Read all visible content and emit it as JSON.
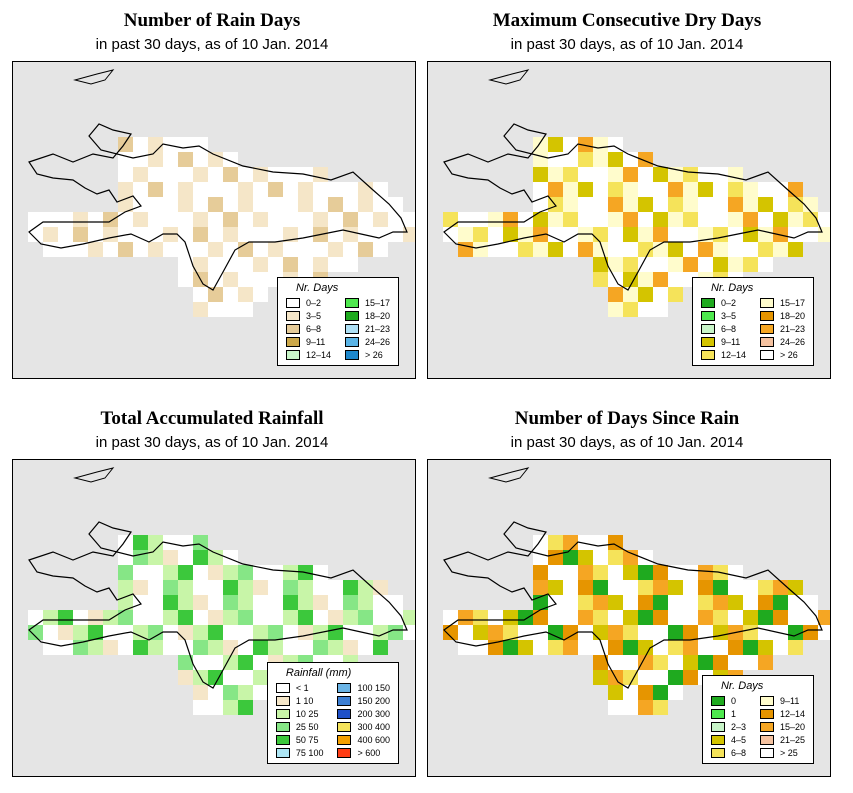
{
  "panels": [
    {
      "title": "Number of Rain Days",
      "subtitle": "in past 30 days, as of  10 Jan. 2014",
      "legend_title": "Nr. Days",
      "legend": [
        {
          "label": "0–2",
          "color": "#ffffff"
        },
        {
          "label": "3–5",
          "color": "#f5e6c8"
        },
        {
          "label": "6–8",
          "color": "#e6cc99"
        },
        {
          "label": "9–11",
          "color": "#cca84a"
        },
        {
          "label": "12–14",
          "color": "#c8f5c8"
        },
        {
          "label": "15–17",
          "color": "#4ee84e"
        },
        {
          "label": "18–20",
          "color": "#1faa1f"
        },
        {
          "label": "21–23",
          "color": "#aee0f5"
        },
        {
          "label": "24–26",
          "color": "#5ab4e6"
        },
        {
          "label": "> 26",
          "color": "#1e88cc"
        }
      ]
    },
    {
      "title": "Maximum Consecutive Dry Days",
      "subtitle": "in past 30 days, as of  10 Jan. 2014",
      "legend_title": "Nr. Days",
      "legend": [
        {
          "label": "0–2",
          "color": "#1faa1f"
        },
        {
          "label": "3–5",
          "color": "#4ee84e"
        },
        {
          "label": "6–8",
          "color": "#c8f5c8"
        },
        {
          "label": "9–11",
          "color": "#d4c400"
        },
        {
          "label": "12–14",
          "color": "#f5e35a"
        },
        {
          "label": "15–17",
          "color": "#fffccc"
        },
        {
          "label": "18–20",
          "color": "#e69500"
        },
        {
          "label": "21–23",
          "color": "#f5a623"
        },
        {
          "label": "24–26",
          "color": "#f5c2a0"
        },
        {
          "label": "> 26",
          "color": "#ffffff"
        }
      ]
    },
    {
      "title": "Total Accumulated Rainfall",
      "subtitle": "in past 30 days, as of  10 Jan. 2014",
      "legend_title": "Rainfall (mm)",
      "legend": [
        {
          "label": "< 1",
          "color": "#ffffff"
        },
        {
          "label": "1    10",
          "color": "#f5e6c8"
        },
        {
          "label": "10    25",
          "color": "#c8f5a8"
        },
        {
          "label": "25    50",
          "color": "#86e686"
        },
        {
          "label": "50    75",
          "color": "#3cc83c"
        },
        {
          "label": "75  100",
          "color": "#aee6f5"
        },
        {
          "label": "100  150",
          "color": "#6ab4e6"
        },
        {
          "label": "150  200",
          "color": "#3c7fd4"
        },
        {
          "label": "200  300",
          "color": "#1e50c8"
        },
        {
          "label": "300  400",
          "color": "#f5e35a"
        },
        {
          "label": "400  600",
          "color": "#f5a000"
        },
        {
          "label": "> 600",
          "color": "#ff3c14"
        }
      ]
    },
    {
      "title": "Number of Days Since Rain",
      "subtitle": "in past 30 days, as of  10 Jan. 2014",
      "legend_title": "Nr. Days",
      "legend": [
        {
          "label": "0",
          "color": "#1faa1f"
        },
        {
          "label": "1",
          "color": "#4ee84e"
        },
        {
          "label": "2–3",
          "color": "#c8f5c8"
        },
        {
          "label": "4–5",
          "color": "#d4c400"
        },
        {
          "label": "6–8",
          "color": "#f5e35a"
        },
        {
          "label": "9–11",
          "color": "#fffccc"
        },
        {
          "label": "12–14",
          "color": "#e69500"
        },
        {
          "label": "15–20",
          "color": "#f5a623"
        },
        {
          "label": "21–25",
          "color": "#f5c2a0"
        },
        {
          "label": "> 25",
          "color": "#ffffff"
        }
      ]
    }
  ]
}
